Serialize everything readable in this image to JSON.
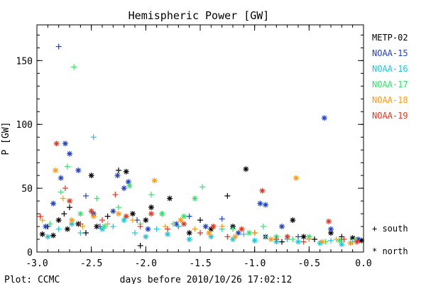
{
  "chart_data": {
    "type": "scatter",
    "title": "Hemispheric Power [GW]",
    "xlabel": "days before 2010/10/26 17:02:12",
    "ylabel": "P [GW]",
    "xlim": [
      -3.0,
      0.0
    ],
    "ylim": [
      0,
      178
    ],
    "xticks": [
      "-3.0",
      "-2.5",
      "-2.0",
      "-1.5",
      "-1.0",
      "-0.5",
      "0.0"
    ],
    "xtick_values": [
      -3.0,
      -2.5,
      -2.0,
      -1.5,
      -1.0,
      -0.5,
      0.0
    ],
    "yticks": [
      "0",
      "50",
      "100",
      "150"
    ],
    "ytick_values": [
      0,
      50,
      100,
      150
    ],
    "grid": false,
    "legend_position": "right",
    "marker_legend": {
      "plus": "+ south",
      "star": "* north"
    },
    "credit": "Plot: CCMC",
    "series": [
      {
        "name": "METP-02",
        "color": "#000000",
        "points": [
          {
            "x": -2.95,
            "y": 14,
            "hemi": "north"
          },
          {
            "x": -2.9,
            "y": 20,
            "hemi": "south"
          },
          {
            "x": -2.85,
            "y": 13,
            "hemi": "north"
          },
          {
            "x": -2.8,
            "y": 25,
            "hemi": "north"
          },
          {
            "x": -2.75,
            "y": 30,
            "hemi": "south"
          },
          {
            "x": -2.72,
            "y": 18,
            "hemi": "north"
          },
          {
            "x": -2.7,
            "y": 35,
            "hemi": "south"
          },
          {
            "x": -2.62,
            "y": 22,
            "hemi": "north"
          },
          {
            "x": -2.55,
            "y": 15,
            "hemi": "south"
          },
          {
            "x": -2.5,
            "y": 60,
            "hemi": "north"
          },
          {
            "x": -2.45,
            "y": 20,
            "hemi": "north"
          },
          {
            "x": -2.35,
            "y": 28,
            "hemi": "south"
          },
          {
            "x": -2.25,
            "y": 64,
            "hemi": "south"
          },
          {
            "x": -2.18,
            "y": 63,
            "hemi": "north"
          },
          {
            "x": -2.12,
            "y": 30,
            "hemi": "north"
          },
          {
            "x": -2.05,
            "y": 5,
            "hemi": "south"
          },
          {
            "x": -2.0,
            "y": 25,
            "hemi": "north"
          },
          {
            "x": -1.95,
            "y": 35,
            "hemi": "north"
          },
          {
            "x": -1.78,
            "y": 42,
            "hemi": "north"
          },
          {
            "x": -1.7,
            "y": 20,
            "hemi": "south"
          },
          {
            "x": -1.6,
            "y": 15,
            "hemi": "north"
          },
          {
            "x": -1.5,
            "y": 25,
            "hemi": "south"
          },
          {
            "x": -1.4,
            "y": 18,
            "hemi": "north"
          },
          {
            "x": -1.25,
            "y": 44,
            "hemi": "south"
          },
          {
            "x": -1.2,
            "y": 20,
            "hemi": "north"
          },
          {
            "x": -1.08,
            "y": 65,
            "hemi": "north"
          },
          {
            "x": -1.0,
            "y": 15,
            "hemi": "south"
          },
          {
            "x": -0.9,
            "y": 12,
            "hemi": "north"
          },
          {
            "x": -0.75,
            "y": 8,
            "hemi": "south"
          },
          {
            "x": -0.65,
            "y": 25,
            "hemi": "north"
          },
          {
            "x": -0.55,
            "y": 12,
            "hemi": "north"
          },
          {
            "x": -0.45,
            "y": 10,
            "hemi": "south"
          },
          {
            "x": -0.3,
            "y": 15,
            "hemi": "north"
          },
          {
            "x": -0.2,
            "y": 12,
            "hemi": "south"
          },
          {
            "x": -0.1,
            "y": 11,
            "hemi": "north"
          },
          {
            "x": -0.02,
            "y": 9,
            "hemi": "north"
          }
        ]
      },
      {
        "name": "NOAA-15",
        "color": "#1f3fbf",
        "points": [
          {
            "x": -2.92,
            "y": 20,
            "hemi": "north"
          },
          {
            "x": -2.85,
            "y": 38,
            "hemi": "north"
          },
          {
            "x": -2.8,
            "y": 161,
            "hemi": "south"
          },
          {
            "x": -2.78,
            "y": 58,
            "hemi": "north"
          },
          {
            "x": -2.74,
            "y": 85,
            "hemi": "north"
          },
          {
            "x": -2.7,
            "y": 77,
            "hemi": "north"
          },
          {
            "x": -2.62,
            "y": 64,
            "hemi": "north"
          },
          {
            "x": -2.55,
            "y": 44,
            "hemi": "south"
          },
          {
            "x": -2.48,
            "y": 30,
            "hemi": "north"
          },
          {
            "x": -2.42,
            "y": 20,
            "hemi": "south"
          },
          {
            "x": -2.3,
            "y": 32,
            "hemi": "north"
          },
          {
            "x": -2.26,
            "y": 60,
            "hemi": "north"
          },
          {
            "x": -2.2,
            "y": 50,
            "hemi": "north"
          },
          {
            "x": -2.16,
            "y": 55,
            "hemi": "north"
          },
          {
            "x": -2.08,
            "y": 25,
            "hemi": "south"
          },
          {
            "x": -1.98,
            "y": 18,
            "hemi": "north"
          },
          {
            "x": -1.85,
            "y": 30,
            "hemi": "south"
          },
          {
            "x": -1.72,
            "y": 22,
            "hemi": "north"
          },
          {
            "x": -1.6,
            "y": 28,
            "hemi": "south"
          },
          {
            "x": -1.45,
            "y": 20,
            "hemi": "north"
          },
          {
            "x": -1.3,
            "y": 26,
            "hemi": "south"
          },
          {
            "x": -1.15,
            "y": 15,
            "hemi": "north"
          },
          {
            "x": -0.95,
            "y": 38,
            "hemi": "north"
          },
          {
            "x": -0.9,
            "y": 37,
            "hemi": "north"
          },
          {
            "x": -0.75,
            "y": 20,
            "hemi": "north"
          },
          {
            "x": -0.6,
            "y": 12,
            "hemi": "south"
          },
          {
            "x": -0.36,
            "y": 105,
            "hemi": "north"
          },
          {
            "x": -0.3,
            "y": 18,
            "hemi": "north"
          },
          {
            "x": -0.2,
            "y": 10,
            "hemi": "south"
          },
          {
            "x": -0.05,
            "y": 10,
            "hemi": "north"
          }
        ]
      },
      {
        "name": "NOAA-16",
        "color": "#19c8d8",
        "points": [
          {
            "x": -2.9,
            "y": 12,
            "hemi": "north"
          },
          {
            "x": -2.8,
            "y": 18,
            "hemi": "south"
          },
          {
            "x": -2.68,
            "y": 22,
            "hemi": "north"
          },
          {
            "x": -2.6,
            "y": 15,
            "hemi": "south"
          },
          {
            "x": -2.48,
            "y": 90,
            "hemi": "south"
          },
          {
            "x": -2.4,
            "y": 18,
            "hemi": "north"
          },
          {
            "x": -2.3,
            "y": 20,
            "hemi": "south"
          },
          {
            "x": -2.2,
            "y": 25,
            "hemi": "north"
          },
          {
            "x": -2.1,
            "y": 15,
            "hemi": "south"
          },
          {
            "x": -2.0,
            "y": 12,
            "hemi": "north"
          },
          {
            "x": -1.9,
            "y": 18,
            "hemi": "south"
          },
          {
            "x": -1.8,
            "y": 14,
            "hemi": "north"
          },
          {
            "x": -1.7,
            "y": 20,
            "hemi": "south"
          },
          {
            "x": -1.6,
            "y": 10,
            "hemi": "north"
          },
          {
            "x": -1.5,
            "y": 15,
            "hemi": "south"
          },
          {
            "x": -1.4,
            "y": 12,
            "hemi": "north"
          },
          {
            "x": -1.3,
            "y": 18,
            "hemi": "south"
          },
          {
            "x": -1.2,
            "y": 10,
            "hemi": "north"
          },
          {
            "x": -1.1,
            "y": 14,
            "hemi": "south"
          },
          {
            "x": -1.0,
            "y": 9,
            "hemi": "north"
          },
          {
            "x": -0.9,
            "y": 12,
            "hemi": "south"
          },
          {
            "x": -0.8,
            "y": 8,
            "hemi": "north"
          },
          {
            "x": -0.7,
            "y": 10,
            "hemi": "south"
          },
          {
            "x": -0.6,
            "y": 8,
            "hemi": "north"
          },
          {
            "x": -0.5,
            "y": 10,
            "hemi": "south"
          },
          {
            "x": -0.4,
            "y": 7,
            "hemi": "north"
          },
          {
            "x": -0.3,
            "y": 9,
            "hemi": "south"
          },
          {
            "x": -0.2,
            "y": 6,
            "hemi": "north"
          },
          {
            "x": -0.1,
            "y": 8,
            "hemi": "south"
          }
        ]
      },
      {
        "name": "NOAA-17",
        "color": "#33e36a",
        "points": [
          {
            "x": -2.88,
            "y": 22,
            "hemi": "south"
          },
          {
            "x": -2.78,
            "y": 47,
            "hemi": "south"
          },
          {
            "x": -2.72,
            "y": 67,
            "hemi": "south"
          },
          {
            "x": -2.66,
            "y": 145,
            "hemi": "south"
          },
          {
            "x": -2.6,
            "y": 30,
            "hemi": "north"
          },
          {
            "x": -2.45,
            "y": 42,
            "hemi": "south"
          },
          {
            "x": -2.38,
            "y": 20,
            "hemi": "north"
          },
          {
            "x": -2.25,
            "y": 35,
            "hemi": "south"
          },
          {
            "x": -2.15,
            "y": 52,
            "hemi": "north"
          },
          {
            "x": -2.05,
            "y": 22,
            "hemi": "south"
          },
          {
            "x": -1.95,
            "y": 45,
            "hemi": "south"
          },
          {
            "x": -1.85,
            "y": 30,
            "hemi": "north"
          },
          {
            "x": -1.75,
            "y": 22,
            "hemi": "south"
          },
          {
            "x": -1.65,
            "y": 28,
            "hemi": "north"
          },
          {
            "x": -1.55,
            "y": 42,
            "hemi": "north"
          },
          {
            "x": -1.48,
            "y": 51,
            "hemi": "south"
          },
          {
            "x": -1.38,
            "y": 20,
            "hemi": "north"
          },
          {
            "x": -1.2,
            "y": 18,
            "hemi": "south"
          },
          {
            "x": -1.05,
            "y": 15,
            "hemi": "north"
          },
          {
            "x": -0.92,
            "y": 20,
            "hemi": "south"
          },
          {
            "x": -0.8,
            "y": 12,
            "hemi": "north"
          },
          {
            "x": -0.65,
            "y": 10,
            "hemi": "south"
          },
          {
            "x": -0.5,
            "y": 12,
            "hemi": "north"
          },
          {
            "x": -0.35,
            "y": 8,
            "hemi": "south"
          },
          {
            "x": -0.22,
            "y": 9,
            "hemi": "north"
          },
          {
            "x": -0.08,
            "y": 10,
            "hemi": "south"
          }
        ]
      },
      {
        "name": "NOAA-18",
        "color": "#ff9a12",
        "points": [
          {
            "x": -2.95,
            "y": 25,
            "hemi": "south"
          },
          {
            "x": -2.83,
            "y": 64,
            "hemi": "north"
          },
          {
            "x": -2.76,
            "y": 42,
            "hemi": "south"
          },
          {
            "x": -2.68,
            "y": 25,
            "hemi": "north"
          },
          {
            "x": -2.58,
            "y": 20,
            "hemi": "south"
          },
          {
            "x": -2.48,
            "y": 28,
            "hemi": "north"
          },
          {
            "x": -2.35,
            "y": 22,
            "hemi": "south"
          },
          {
            "x": -2.25,
            "y": 30,
            "hemi": "north"
          },
          {
            "x": -2.12,
            "y": 25,
            "hemi": "south"
          },
          {
            "x": -1.92,
            "y": 56,
            "hemi": "north"
          },
          {
            "x": -1.82,
            "y": 20,
            "hemi": "south"
          },
          {
            "x": -1.68,
            "y": 25,
            "hemi": "north"
          },
          {
            "x": -1.55,
            "y": 18,
            "hemi": "south"
          },
          {
            "x": -1.42,
            "y": 15,
            "hemi": "north"
          },
          {
            "x": -1.3,
            "y": 20,
            "hemi": "south"
          },
          {
            "x": -1.18,
            "y": 12,
            "hemi": "north"
          },
          {
            "x": -1.0,
            "y": 15,
            "hemi": "south"
          },
          {
            "x": -0.85,
            "y": 10,
            "hemi": "north"
          },
          {
            "x": -0.62,
            "y": 58,
            "hemi": "north"
          },
          {
            "x": -0.5,
            "y": 10,
            "hemi": "south"
          },
          {
            "x": -0.38,
            "y": 8,
            "hemi": "north"
          },
          {
            "x": -0.25,
            "y": 10,
            "hemi": "south"
          },
          {
            "x": -0.12,
            "y": 7,
            "hemi": "north"
          }
        ]
      },
      {
        "name": "NOAA-19",
        "color": "#e8341c",
        "points": [
          {
            "x": -2.97,
            "y": 28,
            "hemi": "south"
          },
          {
            "x": -2.82,
            "y": 85,
            "hemi": "north"
          },
          {
            "x": -2.74,
            "y": 50,
            "hemi": "south"
          },
          {
            "x": -2.7,
            "y": 40,
            "hemi": "north"
          },
          {
            "x": -2.6,
            "y": 22,
            "hemi": "south"
          },
          {
            "x": -2.5,
            "y": 32,
            "hemi": "north"
          },
          {
            "x": -2.4,
            "y": 25,
            "hemi": "south"
          },
          {
            "x": -2.28,
            "y": 45,
            "hemi": "south"
          },
          {
            "x": -2.18,
            "y": 28,
            "hemi": "north"
          },
          {
            "x": -2.05,
            "y": 20,
            "hemi": "south"
          },
          {
            "x": -1.95,
            "y": 30,
            "hemi": "north"
          },
          {
            "x": -1.8,
            "y": 18,
            "hemi": "south"
          },
          {
            "x": -1.65,
            "y": 22,
            "hemi": "north"
          },
          {
            "x": -1.5,
            "y": 15,
            "hemi": "south"
          },
          {
            "x": -1.38,
            "y": 20,
            "hemi": "north"
          },
          {
            "x": -1.25,
            "y": 12,
            "hemi": "south"
          },
          {
            "x": -1.12,
            "y": 18,
            "hemi": "north"
          },
          {
            "x": -0.93,
            "y": 48,
            "hemi": "north"
          },
          {
            "x": -0.8,
            "y": 10,
            "hemi": "south"
          },
          {
            "x": -0.7,
            "y": 12,
            "hemi": "north"
          },
          {
            "x": -0.55,
            "y": 8,
            "hemi": "south"
          },
          {
            "x": -0.32,
            "y": 24,
            "hemi": "north"
          },
          {
            "x": -0.18,
            "y": 10,
            "hemi": "south"
          },
          {
            "x": -0.06,
            "y": 8,
            "hemi": "north"
          }
        ]
      }
    ]
  }
}
